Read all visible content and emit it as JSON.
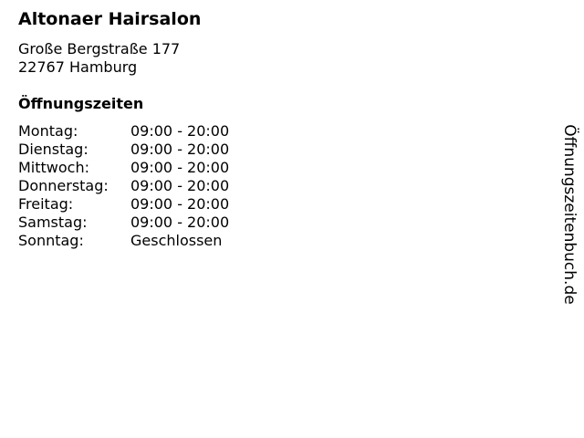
{
  "salon": {
    "name": "Altonaer Hairsalon",
    "street": "Große Bergstraße 177",
    "city": "22767 Hamburg"
  },
  "hours": {
    "heading": "Öffnungszeiten",
    "rows": [
      {
        "day": "Montag:",
        "time": "09:00 - 20:00"
      },
      {
        "day": "Dienstag:",
        "time": "09:00 - 20:00"
      },
      {
        "day": "Mittwoch:",
        "time": "09:00 - 20:00"
      },
      {
        "day": "Donnerstag:",
        "time": "09:00 - 20:00"
      },
      {
        "day": "Freitag:",
        "time": "09:00 - 20:00"
      },
      {
        "day": "Samstag:",
        "time": "09:00 - 20:00"
      },
      {
        "day": "Sonntag:",
        "time": "Geschlossen"
      }
    ]
  },
  "brand": "Öffnungszeitenbuch.de"
}
